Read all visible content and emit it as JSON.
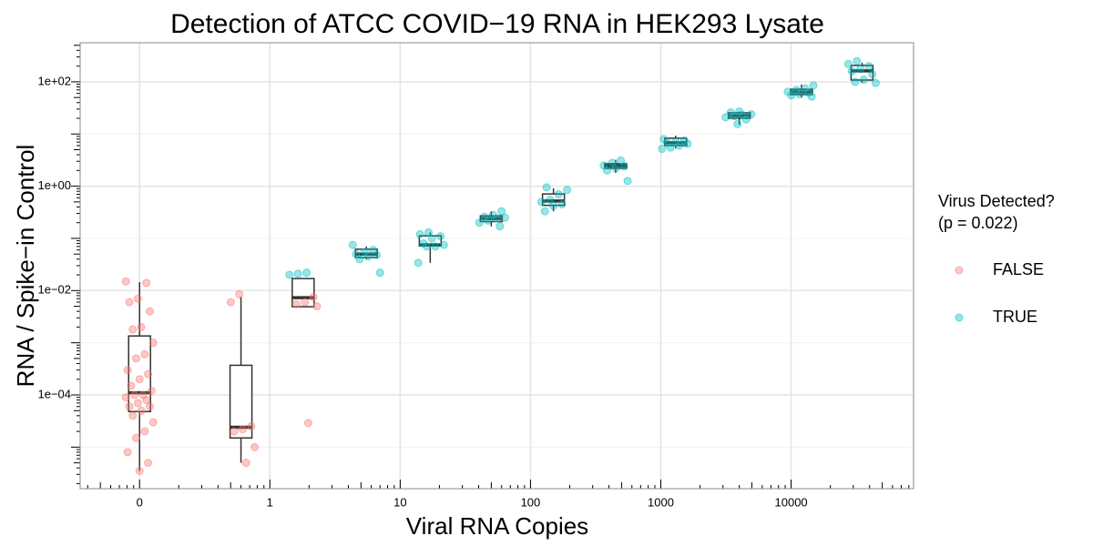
{
  "chart_data": {
    "type": "box",
    "title": "Detection of ATCC COVID−19 RNA in HEK293 Lysate",
    "x_label": "Viral RNA Copies",
    "y_label": "RNA / Spike−in Control",
    "legend_title": "Virus Detected?",
    "legend_subtitle": "(p = 0.022)",
    "log_x": true,
    "log_y": true,
    "grid": true,
    "log_ticks": true,
    "legend_position": "right",
    "xlim": [
      0.035,
      87000
    ],
    "ylim": [
      1.6e-06,
      560
    ],
    "xticks": [
      {
        "value": 0.1,
        "label": "0"
      },
      1,
      10,
      100,
      1000,
      10000
    ],
    "yticks": [
      {
        "value": 0.0001,
        "label": "1e−04"
      },
      {
        "value": 0.01,
        "label": "1e−02"
      },
      {
        "value": 1,
        "label": "1e+00"
      },
      {
        "value": 100,
        "label": "1e+02"
      }
    ],
    "series": [
      {
        "name": "FALSE",
        "color": "#F8766D"
      },
      {
        "name": "TRUE",
        "color": "#00BFC4"
      }
    ],
    "groups": [
      {
        "x": 0.1,
        "whisker_low": 3.5e-06,
        "q1": 4.8e-05,
        "median": 0.00011,
        "q3": 0.00135,
        "whisker_high": 0.0145,
        "points": [
          [
            0.015,
            0.014,
            0.007,
            0.006,
            0.004,
            0.002,
            0.0018,
            0.001,
            0.0006,
            0.0005,
            0.0003,
            0.00025,
            0.0002,
            0.00015,
            0.00012,
            0.0001,
            0.0001,
            9e-05,
            8e-05,
            7e-05,
            6e-05,
            6e-05,
            5e-05,
            4e-05,
            3e-05,
            2e-05,
            1.5e-05,
            8e-06,
            5e-06,
            3.5e-06
          ],
          []
        ]
      },
      {
        "x": 0.6,
        "whisker_low": 5e-06,
        "q1": 1.5e-05,
        "median": 2.4e-05,
        "q3": 0.00037,
        "whisker_high": 0.0076,
        "points": [
          [
            0.0085,
            0.006,
            2.5e-05,
            2.2e-05,
            2e-05,
            1e-05,
            5e-06
          ],
          []
        ]
      },
      {
        "x": 1.8,
        "whisker_low": 0.0049,
        "q1": 0.0049,
        "median": 0.0073,
        "q3": 0.017,
        "whisker_high": 0.017,
        "points": [
          [
            0.0075,
            0.006,
            0.0055,
            0.005,
            2.9e-05
          ],
          [
            0.022,
            0.021,
            0.02
          ]
        ]
      },
      {
        "x": 5.5,
        "whisker_low": 0.04,
        "q1": 0.043,
        "median": 0.05,
        "q3": 0.062,
        "whisker_high": 0.07,
        "points": [
          [],
          [
            0.075,
            0.06,
            0.055,
            0.05,
            0.048,
            0.045,
            0.04,
            0.022
          ]
        ]
      },
      {
        "x": 17,
        "whisker_low": 0.034,
        "q1": 0.072,
        "median": 0.075,
        "q3": 0.112,
        "whisker_high": 0.13,
        "points": [
          [],
          [
            0.13,
            0.12,
            0.11,
            0.1,
            0.08,
            0.075,
            0.07,
            0.07,
            0.034
          ]
        ]
      },
      {
        "x": 50,
        "whisker_low": 0.17,
        "q1": 0.21,
        "median": 0.24,
        "q3": 0.27,
        "whisker_high": 0.33,
        "points": [
          [],
          [
            0.33,
            0.28,
            0.26,
            0.25,
            0.24,
            0.22,
            0.2,
            0.17
          ]
        ]
      },
      {
        "x": 150,
        "whisker_low": 0.33,
        "q1": 0.43,
        "median": 0.52,
        "q3": 0.71,
        "whisker_high": 0.91,
        "points": [
          [],
          [
            0.95,
            0.85,
            0.7,
            0.55,
            0.5,
            0.45,
            0.42,
            0.33
          ]
        ]
      },
      {
        "x": 450,
        "whisker_low": 1.8,
        "q1": 2.2,
        "median": 2.45,
        "q3": 2.7,
        "whisker_high": 3.2,
        "points": [
          [],
          [
            3.1,
            2.8,
            2.5,
            2.4,
            2.2,
            2.0,
            1.26
          ]
        ]
      },
      {
        "x": 1300,
        "whisker_low": 5.3,
        "q1": 6.0,
        "median": 6.8,
        "q3": 8.3,
        "whisker_high": 9.3,
        "points": [
          [],
          [
            8,
            7.5,
            7,
            6.8,
            6.5,
            6,
            5.5,
            5.2
          ]
        ]
      },
      {
        "x": 4000,
        "whisker_low": 15,
        "q1": 20,
        "median": 22.5,
        "q3": 25.5,
        "whisker_high": 27,
        "points": [
          [],
          [
            27,
            26,
            24,
            23,
            22,
            21,
            19,
            15.5
          ]
        ]
      },
      {
        "x": 12000,
        "whisker_low": 50,
        "q1": 57,
        "median": 64,
        "q3": 72,
        "whisker_high": 88,
        "points": [
          [],
          [
            85,
            75,
            70,
            65,
            62,
            58,
            55,
            52
          ]
        ]
      },
      {
        "x": 35000,
        "whisker_low": 96,
        "q1": 108,
        "median": 162,
        "q3": 206,
        "whisker_high": 233,
        "points": [
          [],
          [
            250,
            220,
            200,
            175,
            160,
            140,
            110,
            100,
            95
          ]
        ]
      }
    ]
  }
}
